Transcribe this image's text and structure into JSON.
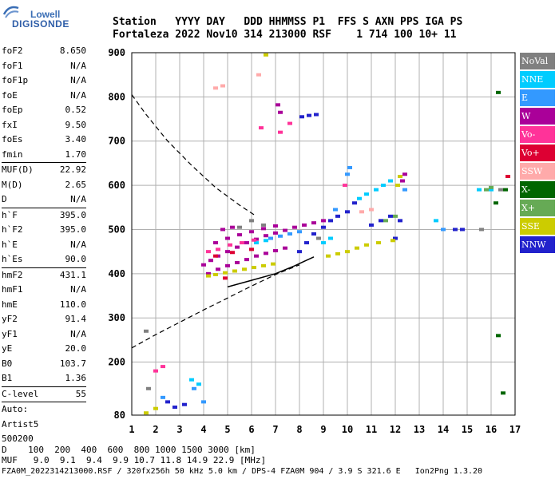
{
  "logo": {
    "top": "Lowell",
    "bottom": "DIGISONDE"
  },
  "header": {
    "line1": "Station   YYYY DAY   DDD HHMMSS P1  FFS S AXN PPS IGA PS",
    "line2": "Fortaleza 2022 Nov10 314 213000 RSF    1 714 100 10+ 11"
  },
  "params": [
    {
      "name": "foF2",
      "value": "8.650",
      "sep": false,
      "gap": false
    },
    {
      "name": "foF1",
      "value": "N/A",
      "sep": false,
      "gap": false
    },
    {
      "name": "foF1p",
      "value": "N/A",
      "sep": false,
      "gap": false
    },
    {
      "name": "foE",
      "value": "N/A",
      "sep": false,
      "gap": false
    },
    {
      "name": "foEp",
      "value": "0.52",
      "sep": false,
      "gap": false
    },
    {
      "name": "fxI",
      "value": "9.50",
      "sep": false,
      "gap": false
    },
    {
      "name": "foEs",
      "value": "3.40",
      "sep": false,
      "gap": false
    },
    {
      "name": "fmin",
      "value": "1.70",
      "sep": false,
      "gap": false
    },
    {
      "name": "MUF(D)",
      "value": "22.92",
      "sep": true,
      "gap": false
    },
    {
      "name": "M(D)",
      "value": "2.65",
      "sep": false,
      "gap": false
    },
    {
      "name": "D",
      "value": "N/A",
      "sep": false,
      "gap": false
    },
    {
      "name": "h`F",
      "value": "395.0",
      "sep": true,
      "gap": false
    },
    {
      "name": "h`F2",
      "value": "395.0",
      "sep": false,
      "gap": false
    },
    {
      "name": "h`E",
      "value": "N/A",
      "sep": false,
      "gap": false
    },
    {
      "name": "h`Es",
      "value": "90.0",
      "sep": false,
      "gap": false
    },
    {
      "name": "hmF2",
      "value": "431.1",
      "sep": true,
      "gap": false
    },
    {
      "name": "hmF1",
      "value": "N/A",
      "sep": false,
      "gap": false
    },
    {
      "name": "hmE",
      "value": "110.0",
      "sep": false,
      "gap": false
    },
    {
      "name": "yF2",
      "value": "91.4",
      "sep": false,
      "gap": false
    },
    {
      "name": "yF1",
      "value": "N/A",
      "sep": false,
      "gap": false
    },
    {
      "name": "yE",
      "value": "20.0",
      "sep": false,
      "gap": false
    },
    {
      "name": "B0",
      "value": "103.7",
      "sep": false,
      "gap": false
    },
    {
      "name": "B1",
      "value": "1.36",
      "sep": false,
      "gap": false
    },
    {
      "name": "C-level",
      "value": "55",
      "sep": true,
      "gap": false
    },
    {
      "name": "Auto:",
      "value": "",
      "sep": true,
      "gap": false
    },
    {
      "name": "Artist5",
      "value": "",
      "sep": false,
      "gap": false
    },
    {
      "name": "500200",
      "value": "",
      "sep": false,
      "gap": false
    }
  ],
  "legend": [
    {
      "label": "NoVal",
      "color": "#808080"
    },
    {
      "label": "NNE",
      "color": "#00ccff"
    },
    {
      "label": "E",
      "color": "#3399ff"
    },
    {
      "label": "W",
      "color": "#aa0099"
    },
    {
      "label": "Vo-",
      "color": "#ff3399"
    },
    {
      "label": "Vo+",
      "color": "#dd0033"
    },
    {
      "label": "SSW",
      "color": "#ffaaaa"
    },
    {
      "label": "X-",
      "color": "#006600"
    },
    {
      "label": "X+",
      "color": "#66aa55"
    },
    {
      "label": "SSE",
      "color": "#cccc00"
    },
    {
      "label": "NNW",
      "color": "#2222cc"
    }
  ],
  "footer": {
    "line1": "D    100  200  400  600  800 1000 1500 3000 [km]",
    "line2": "MUF   9.0  9.1  9.4  9.9 10.7 11.8 14.9 22.9 [MHz]",
    "line3": "FZA0M_2022314213000.RSF / 320fx256h 50 kHz 5.0 km / DPS-4 FZA0M 904 / 3.9 S 321.6 E   Ion2Png 1.3.20"
  },
  "chart_data": {
    "type": "scatter",
    "title": "",
    "xlabel": "",
    "ylabel": "",
    "xlim": [
      1,
      17
    ],
    "ylim": [
      80,
      900
    ],
    "xticks": [
      1,
      2,
      3,
      4,
      5,
      6,
      7,
      8,
      9,
      10,
      11,
      12,
      13,
      14,
      15,
      16,
      17
    ],
    "yticks": [
      80,
      200,
      300,
      400,
      500,
      600,
      700,
      800,
      900
    ],
    "grid": true,
    "profile_dashed": [
      [
        1.0,
        805
      ],
      [
        1.6,
        760
      ],
      [
        2.5,
        700
      ],
      [
        3.5,
        645
      ],
      [
        4.5,
        595
      ],
      [
        5.5,
        555
      ],
      [
        6.2,
        530
      ]
    ],
    "profile_dashed_lower": [
      [
        1.0,
        232
      ],
      [
        2.0,
        262
      ],
      [
        3.0,
        290
      ],
      [
        4.0,
        318
      ],
      [
        5.0,
        345
      ],
      [
        6.0,
        372
      ],
      [
        7.0,
        398
      ],
      [
        8.0,
        420
      ]
    ],
    "profile_solid": [
      [
        5.0,
        370
      ],
      [
        6.0,
        385
      ],
      [
        7.0,
        400
      ],
      [
        7.8,
        418
      ],
      [
        8.2,
        428
      ],
      [
        8.6,
        438
      ]
    ],
    "series": [
      {
        "name": "W",
        "color": "#aa0099",
        "points": [
          [
            4.0,
            420
          ],
          [
            4.3,
            430
          ],
          [
            4.6,
            440
          ],
          [
            5.0,
            450
          ],
          [
            5.4,
            460
          ],
          [
            5.8,
            470
          ],
          [
            6.2,
            478
          ],
          [
            6.6,
            486
          ],
          [
            7.0,
            492
          ],
          [
            7.4,
            498
          ],
          [
            7.8,
            505
          ],
          [
            8.2,
            510
          ],
          [
            8.6,
            515
          ],
          [
            9.0,
            520
          ],
          [
            4.2,
            400
          ],
          [
            4.6,
            410
          ],
          [
            5.0,
            418
          ],
          [
            5.4,
            425
          ],
          [
            5.8,
            432
          ],
          [
            6.2,
            440
          ],
          [
            6.6,
            446
          ],
          [
            7.0,
            452
          ],
          [
            7.4,
            458
          ],
          [
            4.5,
            470
          ],
          [
            5.0,
            480
          ],
          [
            5.5,
            488
          ],
          [
            6.0,
            495
          ],
          [
            6.5,
            502
          ],
          [
            7.0,
            508
          ],
          [
            12.3,
            610
          ],
          [
            12.4,
            625
          ],
          [
            4.8,
            500
          ],
          [
            5.2,
            505
          ],
          [
            7.1,
            782
          ],
          [
            7.2,
            765
          ]
        ]
      },
      {
        "name": "NNW",
        "color": "#2222cc",
        "points": [
          [
            8.0,
            450
          ],
          [
            8.3,
            470
          ],
          [
            8.6,
            490
          ],
          [
            9.0,
            505
          ],
          [
            9.3,
            520
          ],
          [
            9.6,
            530
          ],
          [
            10.0,
            540
          ],
          [
            10.3,
            560
          ],
          [
            11.0,
            510
          ],
          [
            11.4,
            520
          ],
          [
            11.8,
            530
          ],
          [
            12.0,
            480
          ],
          [
            12.2,
            520
          ],
          [
            14.5,
            500
          ],
          [
            14.8,
            500
          ],
          [
            8.1,
            755
          ],
          [
            8.4,
            758
          ],
          [
            8.7,
            760
          ],
          [
            2.5,
            110
          ],
          [
            2.8,
            98
          ],
          [
            3.2,
            104
          ]
        ]
      },
      {
        "name": "NNE",
        "color": "#00ccff",
        "points": [
          [
            10.5,
            570
          ],
          [
            10.8,
            580
          ],
          [
            11.2,
            590
          ],
          [
            11.5,
            600
          ],
          [
            11.8,
            610
          ],
          [
            9.0,
            470
          ],
          [
            9.3,
            480
          ],
          [
            6.2,
            470
          ],
          [
            6.6,
            475
          ],
          [
            13.7,
            520
          ],
          [
            15.5,
            590
          ],
          [
            16.0,
            590
          ],
          [
            3.5,
            160
          ],
          [
            3.8,
            150
          ]
        ]
      },
      {
        "name": "E",
        "color": "#3399ff",
        "points": [
          [
            6.8,
            480
          ],
          [
            7.2,
            485
          ],
          [
            7.6,
            490
          ],
          [
            8.0,
            495
          ],
          [
            10.0,
            625
          ],
          [
            10.1,
            640
          ],
          [
            9.5,
            545
          ],
          [
            12.4,
            590
          ],
          [
            14.0,
            500
          ],
          [
            2.3,
            120
          ],
          [
            3.6,
            140
          ],
          [
            4.0,
            110
          ]
        ]
      },
      {
        "name": "Vo-",
        "color": "#ff3399",
        "points": [
          [
            4.2,
            450
          ],
          [
            4.6,
            455
          ],
          [
            5.1,
            465
          ],
          [
            5.6,
            470
          ],
          [
            6.1,
            476
          ],
          [
            7.2,
            720
          ],
          [
            7.6,
            740
          ],
          [
            6.4,
            730
          ],
          [
            2.0,
            180
          ],
          [
            2.3,
            190
          ],
          [
            9.9,
            600
          ]
        ]
      },
      {
        "name": "Vo+",
        "color": "#dd0033",
        "points": [
          [
            4.5,
            440
          ],
          [
            5.2,
            448
          ],
          [
            6.0,
            455
          ],
          [
            4.9,
            390
          ],
          [
            16.7,
            620
          ]
        ]
      },
      {
        "name": "SSW",
        "color": "#ffaaaa",
        "points": [
          [
            4.5,
            820
          ],
          [
            4.8,
            825
          ],
          [
            6.3,
            850
          ],
          [
            10.6,
            540
          ],
          [
            11.0,
            545
          ]
        ]
      },
      {
        "name": "X-",
        "color": "#006600",
        "points": [
          [
            16.3,
            810
          ],
          [
            16.3,
            260
          ],
          [
            16.5,
            130
          ],
          [
            16.6,
            590
          ],
          [
            16.2,
            560
          ]
        ]
      },
      {
        "name": "X+",
        "color": "#66aa55",
        "points": [
          [
            11.6,
            520
          ],
          [
            12.0,
            530
          ],
          [
            15.8,
            590
          ],
          [
            16.0,
            595
          ]
        ]
      },
      {
        "name": "SSE",
        "color": "#cccc00",
        "points": [
          [
            4.2,
            395
          ],
          [
            4.5,
            398
          ],
          [
            4.9,
            402
          ],
          [
            5.3,
            406
          ],
          [
            5.7,
            410
          ],
          [
            6.1,
            414
          ],
          [
            6.5,
            418
          ],
          [
            6.9,
            422
          ],
          [
            9.2,
            440
          ],
          [
            9.6,
            445
          ],
          [
            10.0,
            450
          ],
          [
            10.4,
            458
          ],
          [
            10.8,
            465
          ],
          [
            11.3,
            470
          ],
          [
            11.9,
            475
          ],
          [
            12.1,
            600
          ],
          [
            12.2,
            620
          ],
          [
            6.6,
            895
          ],
          [
            1.6,
            85
          ],
          [
            2.0,
            95
          ]
        ]
      },
      {
        "name": "NoVal",
        "color": "#808080",
        "points": [
          [
            5.5,
            505
          ],
          [
            6.0,
            520
          ],
          [
            6.5,
            510
          ],
          [
            8.8,
            480
          ],
          [
            15.6,
            500
          ],
          [
            16.4,
            590
          ],
          [
            1.6,
            270
          ],
          [
            1.7,
            140
          ]
        ]
      }
    ]
  }
}
